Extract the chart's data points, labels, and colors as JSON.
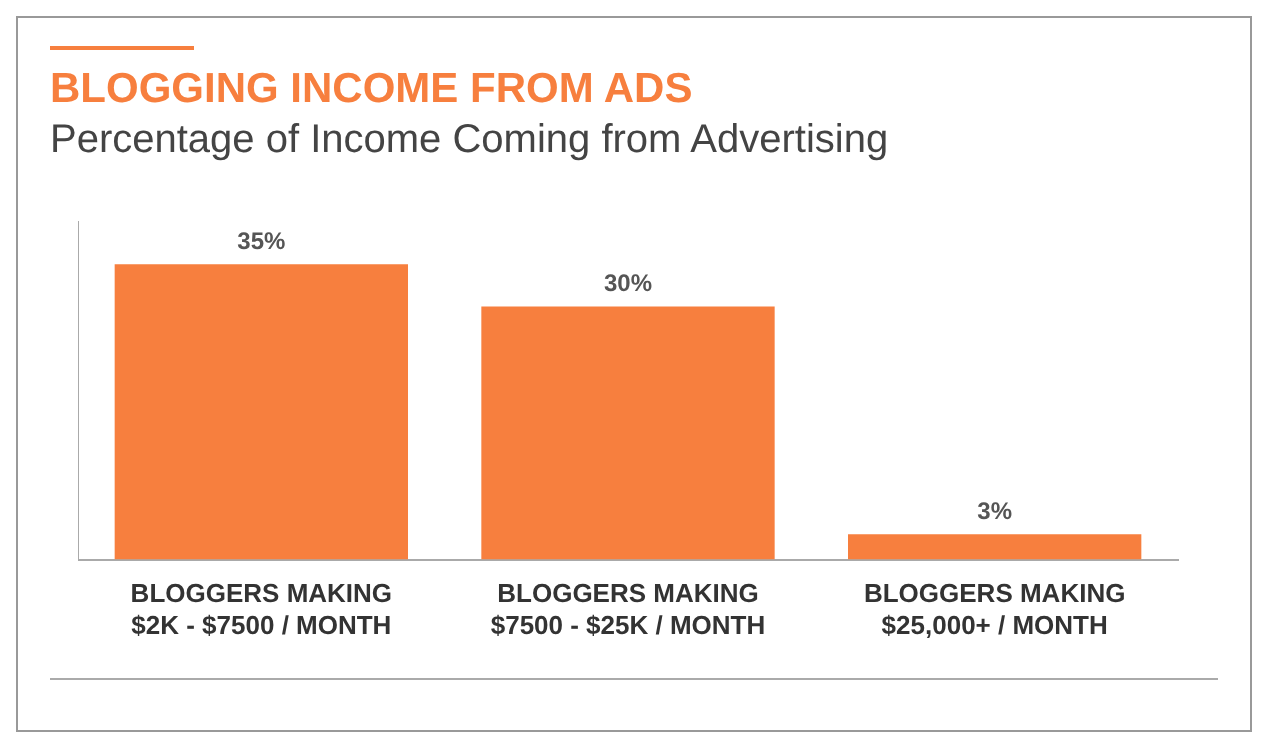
{
  "chart_data": {
    "type": "bar",
    "title": "BLOGGING INCOME FROM ADS",
    "subtitle": "Percentage of Income Coming from Advertising",
    "categories": [
      "BLOGGERS MAKING\n$2K - $7500 / MONTH",
      "BLOGGERS MAKING\n$7500 - $25K / MONTH",
      "BLOGGERS MAKING\n$25,000+ / MONTH"
    ],
    "values": [
      35,
      30,
      3
    ],
    "color": "#f77f3e",
    "value_labels": [
      "35%",
      "30%",
      "3%"
    ],
    "tick_labels": "x",
    "grid": false,
    "legend": false
  }
}
